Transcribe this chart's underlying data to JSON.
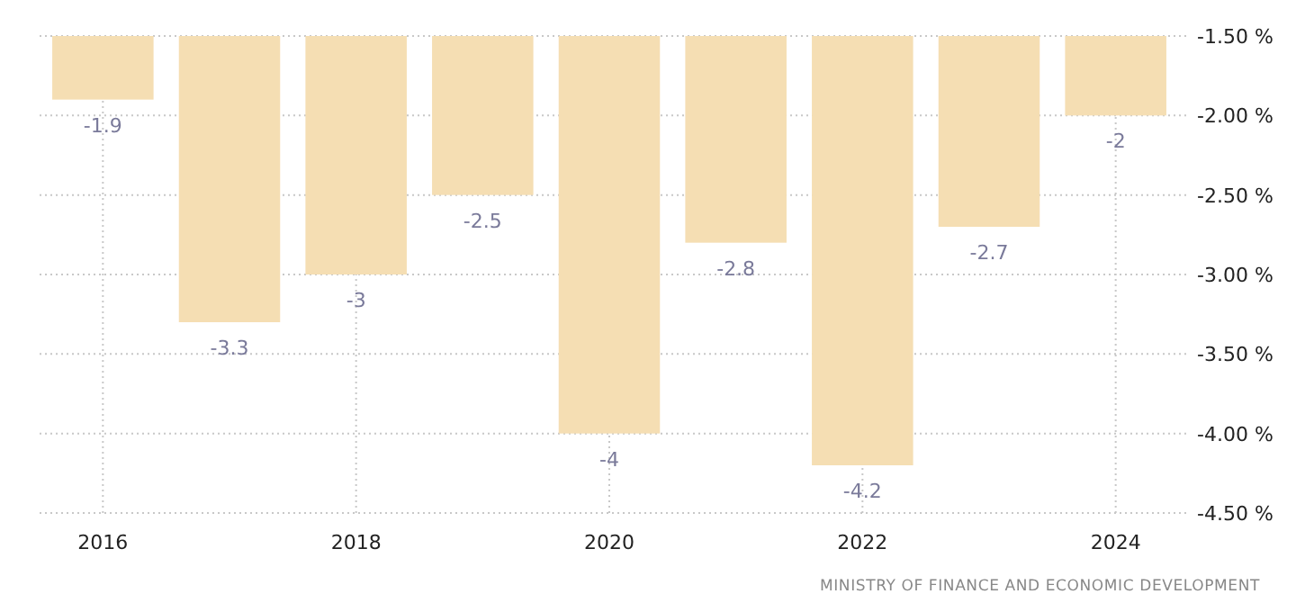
{
  "chart_data": {
    "type": "bar",
    "categories": [
      "2016",
      null,
      "2018",
      null,
      "2020",
      null,
      "2022",
      null,
      "2024"
    ],
    "values": [
      -1.9,
      -3.3,
      -3,
      -2.5,
      -4,
      -2.8,
      -4.2,
      -2.7,
      -2
    ],
    "color": "#f5deb3",
    "ylim": [
      -4.5,
      -1.5
    ],
    "yticks": [
      {
        "value": -1.5,
        "label": "-1.50 %"
      },
      {
        "value": -2,
        "label": "-2.00 %"
      },
      {
        "value": -2.5,
        "label": "-2.50 %"
      },
      {
        "value": -3,
        "label": "-3.00 %"
      },
      {
        "value": -3.5,
        "label": "-3.50 %"
      },
      {
        "value": -4,
        "label": "-4.00 %"
      },
      {
        "value": -4.5,
        "label": "-4.50 %"
      }
    ],
    "grid": true,
    "data_labels": true,
    "annotations": [
      "MINISTRY OF FINANCE AND ECONOMIC DEVELOPMENT"
    ]
  }
}
